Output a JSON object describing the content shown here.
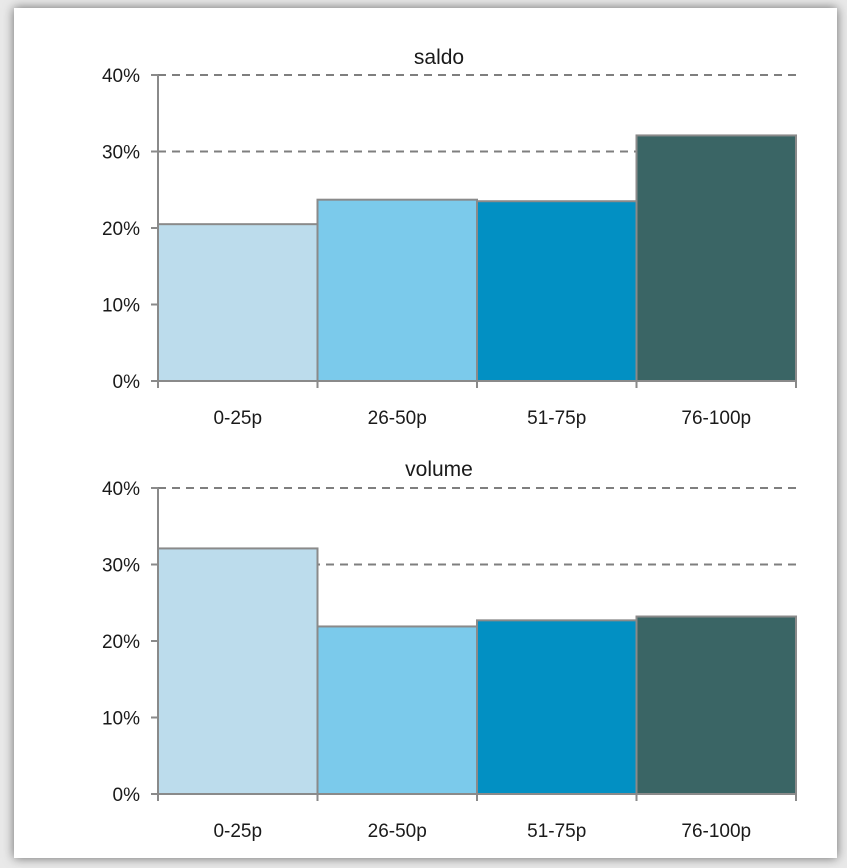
{
  "chart_data": [
    {
      "type": "bar",
      "title": "saldo",
      "categories": [
        "0-25p",
        "26-50p",
        "51-75p",
        "76-100p"
      ],
      "values": [
        0.205,
        0.237,
        0.235,
        0.321
      ],
      "ylim": [
        0,
        0.4
      ],
      "yticks": [
        "0%",
        "10%",
        "20%",
        "30%",
        "40%"
      ],
      "grid": "dashed horizontal at 30% and 40%",
      "colors": [
        "#bcdcec",
        "#7bcaeb",
        "#0290c3",
        "#3a6565"
      ]
    },
    {
      "type": "bar",
      "title": "volume",
      "categories": [
        "0-25p",
        "26-50p",
        "51-75p",
        "76-100p"
      ],
      "values": [
        0.321,
        0.219,
        0.227,
        0.232
      ],
      "ylim": [
        0,
        0.4
      ],
      "yticks": [
        "0%",
        "10%",
        "20%",
        "30%",
        "40%"
      ],
      "grid": "dashed horizontal at 30% and 40%",
      "colors": [
        "#bcdcec",
        "#7bcaeb",
        "#0290c3",
        "#3a6565"
      ]
    }
  ]
}
